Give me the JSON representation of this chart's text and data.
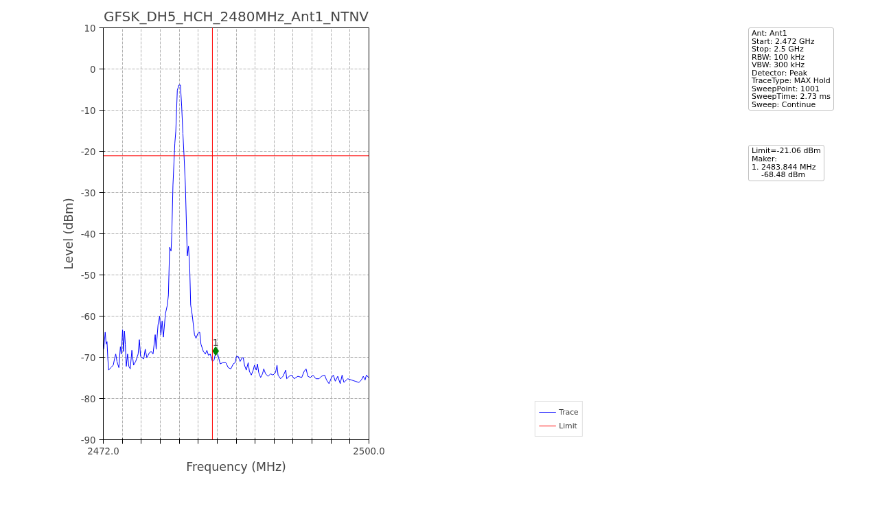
{
  "chart_data": {
    "type": "line",
    "title": "GFSK_DH5_HCH_2480MHz_Ant1_NTNV",
    "xlabel": "Frequency (MHz)",
    "ylabel": "Level (dBm)",
    "xlim": [
      2472,
      2500
    ],
    "ylim": [
      -90,
      10
    ],
    "xticks": [
      {
        "value": 2472,
        "label": "2472.0"
      },
      {
        "value": 2474,
        "label": null
      },
      {
        "value": 2476,
        "label": null
      },
      {
        "value": 2478,
        "label": null
      },
      {
        "value": 2480,
        "label": null
      },
      {
        "value": 2482,
        "label": null
      },
      {
        "value": 2484,
        "label": null
      },
      {
        "value": 2486,
        "label": null
      },
      {
        "value": 2488,
        "label": null
      },
      {
        "value": 2490,
        "label": null
      },
      {
        "value": 2492,
        "label": null
      },
      {
        "value": 2494,
        "label": null
      },
      {
        "value": 2496,
        "label": null
      },
      {
        "value": 2498,
        "label": null
      },
      {
        "value": 2500,
        "label": "2500.0"
      }
    ],
    "yticks": [
      -90,
      -80,
      -70,
      -60,
      -50,
      -40,
      -30,
      -20,
      -10,
      0,
      10
    ],
    "grid": true,
    "legend": "bottom right",
    "series": [
      {
        "name": "Trace",
        "color": "#0000ff",
        "x": [
          2472.04,
          2472.2,
          2472.3,
          2472.39,
          2472.48,
          2472.56,
          2472.79,
          2473.05,
          2473.18,
          2473.31,
          2473.44,
          2473.64,
          2473.8,
          2473.9,
          2474.03,
          2474.14,
          2474.23,
          2474.32,
          2474.42,
          2474.56,
          2474.69,
          2474.84,
          2475.01,
          2475.19,
          2475.41,
          2475.67,
          2475.8,
          2475.93,
          2476.26,
          2476.42,
          2476.59,
          2476.85,
          2477.05,
          2477.24,
          2477.47,
          2477.57,
          2477.77,
          2477.94,
          2478.07,
          2478.2,
          2478.33,
          2478.55,
          2478.75,
          2478.86,
          2478.99,
          2479.14,
          2479.22,
          2479.34,
          2479.54,
          2479.64,
          2479.8,
          2479.96,
          2480.13,
          2480.26,
          2480.39,
          2480.52,
          2480.65,
          2480.85,
          2480.98,
          2481.11,
          2481.21,
          2481.37,
          2481.61,
          2481.77,
          2481.96,
          2482.16,
          2482.29,
          2482.55,
          2482.75,
          2482.92,
          2483.08,
          2483.27,
          2483.5,
          2483.67,
          2483.86,
          2484.06,
          2484.32,
          2484.58,
          2484.91,
          2485.17,
          2485.44,
          2485.7,
          2485.89,
          2486.03,
          2486.22,
          2486.42,
          2486.62,
          2486.75,
          2486.88,
          2487.07,
          2487.27,
          2487.4,
          2487.6,
          2487.8,
          2487.93,
          2488.12,
          2488.25,
          2488.38,
          2488.58,
          2488.78,
          2488.91,
          2489.1,
          2489.37,
          2489.63,
          2489.89,
          2490.15,
          2490.31,
          2490.42,
          2490.68,
          2490.94,
          2491.23,
          2491.33,
          2491.6,
          2491.86,
          2492.12,
          2492.51,
          2492.91,
          2493.17,
          2493.37,
          2493.56,
          2493.82,
          2494.09,
          2494.41,
          2494.74,
          2495.0,
          2495.33,
          2495.53,
          2495.79,
          2496.05,
          2496.25,
          2496.45,
          2496.71,
          2496.97,
          2497.17,
          2497.36,
          2497.76,
          2498.15,
          2498.54,
          2498.94,
          2499.2,
          2499.4,
          2499.59,
          2499.73,
          2499.96
        ],
        "values": [
          -68.0,
          -63.9,
          -66.8,
          -66.2,
          -70.4,
          -73.1,
          -72.5,
          -71.9,
          -70.4,
          -69.2,
          -71.0,
          -72.5,
          -67.4,
          -69.2,
          -63.3,
          -68.6,
          -63.6,
          -66.8,
          -72.2,
          -69.2,
          -72.2,
          -72.8,
          -68.3,
          -71.9,
          -71.0,
          -69.2,
          -65.7,
          -69.8,
          -70.4,
          -68.0,
          -70.1,
          -68.9,
          -68.6,
          -69.2,
          -64.5,
          -68.0,
          -62.1,
          -60.0,
          -64.5,
          -61.2,
          -65.1,
          -59.4,
          -57.3,
          -54.9,
          -43.3,
          -44.2,
          -40.1,
          -28.2,
          -18.0,
          -15.1,
          -5.2,
          -3.9,
          -3.9,
          -9.1,
          -15.7,
          -21.6,
          -28.2,
          -45.4,
          -43.0,
          -48.4,
          -57.3,
          -59.7,
          -64.5,
          -65.4,
          -64.2,
          -63.9,
          -66.8,
          -68.6,
          -69.2,
          -68.3,
          -69.5,
          -69.2,
          -71.0,
          -70.7,
          -68.6,
          -69.2,
          -71.6,
          -71.3,
          -71.3,
          -72.5,
          -72.8,
          -71.6,
          -71.3,
          -69.8,
          -69.8,
          -71.0,
          -70.1,
          -70.1,
          -71.9,
          -73.1,
          -71.3,
          -73.4,
          -74.3,
          -73.1,
          -71.9,
          -73.1,
          -71.6,
          -73.7,
          -74.9,
          -74.0,
          -72.8,
          -74.0,
          -74.6,
          -74.0,
          -74.3,
          -73.7,
          -71.9,
          -74.3,
          -75.2,
          -74.6,
          -73.1,
          -75.2,
          -74.6,
          -74.3,
          -75.2,
          -74.6,
          -74.9,
          -73.4,
          -72.8,
          -74.6,
          -74.9,
          -74.3,
          -75.2,
          -75.2,
          -74.6,
          -74.3,
          -75.5,
          -76.4,
          -74.9,
          -74.3,
          -75.8,
          -74.6,
          -76.4,
          -74.3,
          -76.1,
          -75.2,
          -75.5,
          -75.8,
          -76.1,
          -75.5,
          -74.6,
          -75.5,
          -74.3,
          -74.9
        ]
      },
      {
        "name": "Limit",
        "color": "#ff0000",
        "x": [
          2472,
          2500
        ],
        "values": [
          -21.06,
          -21.06
        ]
      }
    ],
    "ref_lines": [
      {
        "axis": "x",
        "value": 2483.5,
        "color": "#ff0000"
      }
    ],
    "annotations": [
      {
        "text": "1",
        "x": 2483.844,
        "y": -68.48
      },
      "Ant: Ant1\nStart: 2.472 GHz\nStop: 2.5 GHz\nRBW: 100 kHz\nVBW: 300 kHz\nDetector: Peak\nTraceType: MAX Hold\nSweepPoint: 1001\nSweepTime: 2.73 ms\nSweep: Continue",
      "Limit=-21.06 dBm\nMaker:\n1. 2483.844 MHz\n    -68.48 dBm"
    ]
  }
}
